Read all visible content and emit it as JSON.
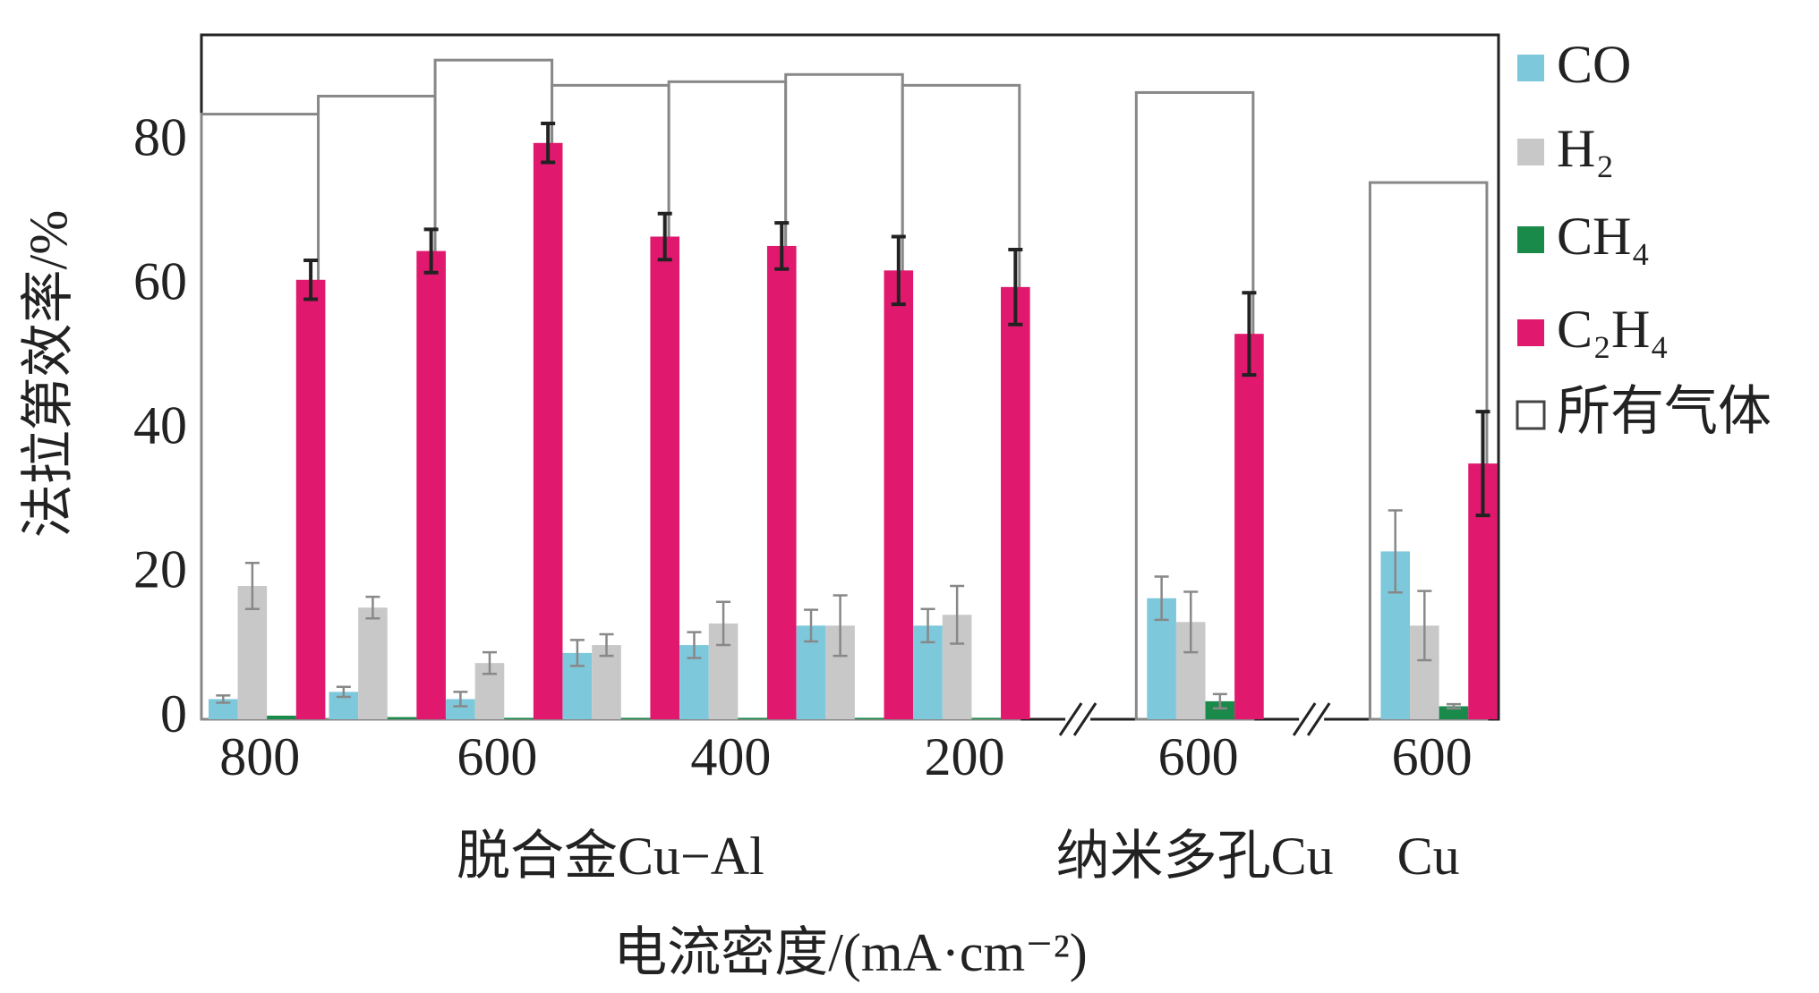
{
  "chart_data": {
    "type": "bar",
    "categories": [
      "800",
      null,
      "600",
      null,
      "400",
      null,
      "200",
      "600",
      "600"
    ],
    "groups": [
      {
        "label": "脱合金Cu−Al",
        "members": [
          0,
          1,
          2,
          3,
          4,
          5,
          6
        ]
      },
      {
        "label": "纳米多孔Cu",
        "members": [
          7
        ]
      },
      {
        "label": "Cu",
        "members": [
          8
        ]
      }
    ],
    "series": [
      {
        "name": "CO",
        "color": "#7ec8dc",
        "values": [
          2.8,
          3.8,
          2.8,
          9.2,
          10.3,
          13,
          13,
          16.8,
          23.3
        ],
        "errors": [
          0.5,
          0.7,
          1,
          1.8,
          1.8,
          2.2,
          2.3,
          3,
          5.7
        ],
        "error_color": "#888888"
      },
      {
        "name": "H₂",
        "color": "#c8c8c8",
        "values": [
          18.5,
          15.5,
          7.8,
          10.3,
          13.3,
          13,
          14.5,
          13.5,
          13
        ],
        "errors": [
          3.2,
          1.5,
          1.5,
          1.5,
          3,
          4.2,
          4,
          4.2,
          4.8
        ],
        "error_color": "#888888"
      },
      {
        "name": "CH₄",
        "color": "#1a8a4a",
        "values": [
          0.5,
          0.3,
          0.2,
          0.2,
          0.2,
          0.2,
          0.2,
          2.5,
          1.8
        ],
        "errors": [
          null,
          null,
          null,
          null,
          null,
          null,
          null,
          1,
          0.3
        ],
        "error_color": "#888888"
      },
      {
        "name": "C₂H₄",
        "color": "#e0196e",
        "values": [
          61,
          65,
          80,
          67,
          65.7,
          62.3,
          60,
          53.5,
          35.5
        ],
        "errors": [
          2.7,
          3,
          2.7,
          3.2,
          3.2,
          4.7,
          5.2,
          5.7,
          7.2
        ],
        "error_color": "#222222"
      }
    ],
    "total": {
      "name": "所有气体",
      "color": "#888888",
      "values": [
        84,
        86.5,
        91.5,
        88,
        88.5,
        89.5,
        88,
        87,
        74.5
      ]
    },
    "ylim": [
      0,
      95
    ],
    "yticks": [
      0,
      20,
      40,
      60,
      80
    ],
    "ylabel": "法拉第效率/%",
    "xlabel": "电流密度/(mA·cm⁻²)",
    "legend": "right"
  }
}
